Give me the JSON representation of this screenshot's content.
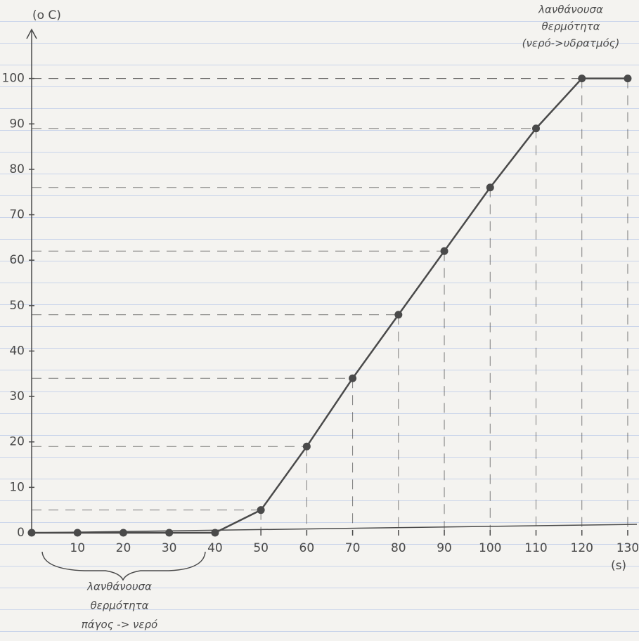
{
  "chart_data": {
    "type": "line",
    "y_label": "(ο C)",
    "x_label": "(s)",
    "annotation_top": [
      "λανθάνουσα",
      "θερμότητα",
      "(νερό->υδρατμός)"
    ],
    "annotation_bottom": [
      "λανθάνουσα",
      "θερμότητα",
      "πάγος -> νερό"
    ],
    "x": [
      0,
      10,
      20,
      30,
      40,
      50,
      60,
      70,
      80,
      90,
      100,
      110,
      120,
      130
    ],
    "values": [
      0,
      0,
      0,
      0,
      0,
      5,
      19,
      34,
      48,
      62,
      76,
      89,
      100,
      100
    ],
    "color": "#4a4a4a",
    "xlim": [
      0,
      132
    ],
    "ylim": [
      0,
      110
    ],
    "xticks": [
      10,
      20,
      30,
      40,
      50,
      60,
      70,
      80,
      90,
      100,
      110,
      120,
      130
    ],
    "yticks": [
      0,
      10,
      20,
      30,
      40,
      50,
      60,
      70,
      80,
      90,
      100
    ],
    "projection_lines": true
  }
}
